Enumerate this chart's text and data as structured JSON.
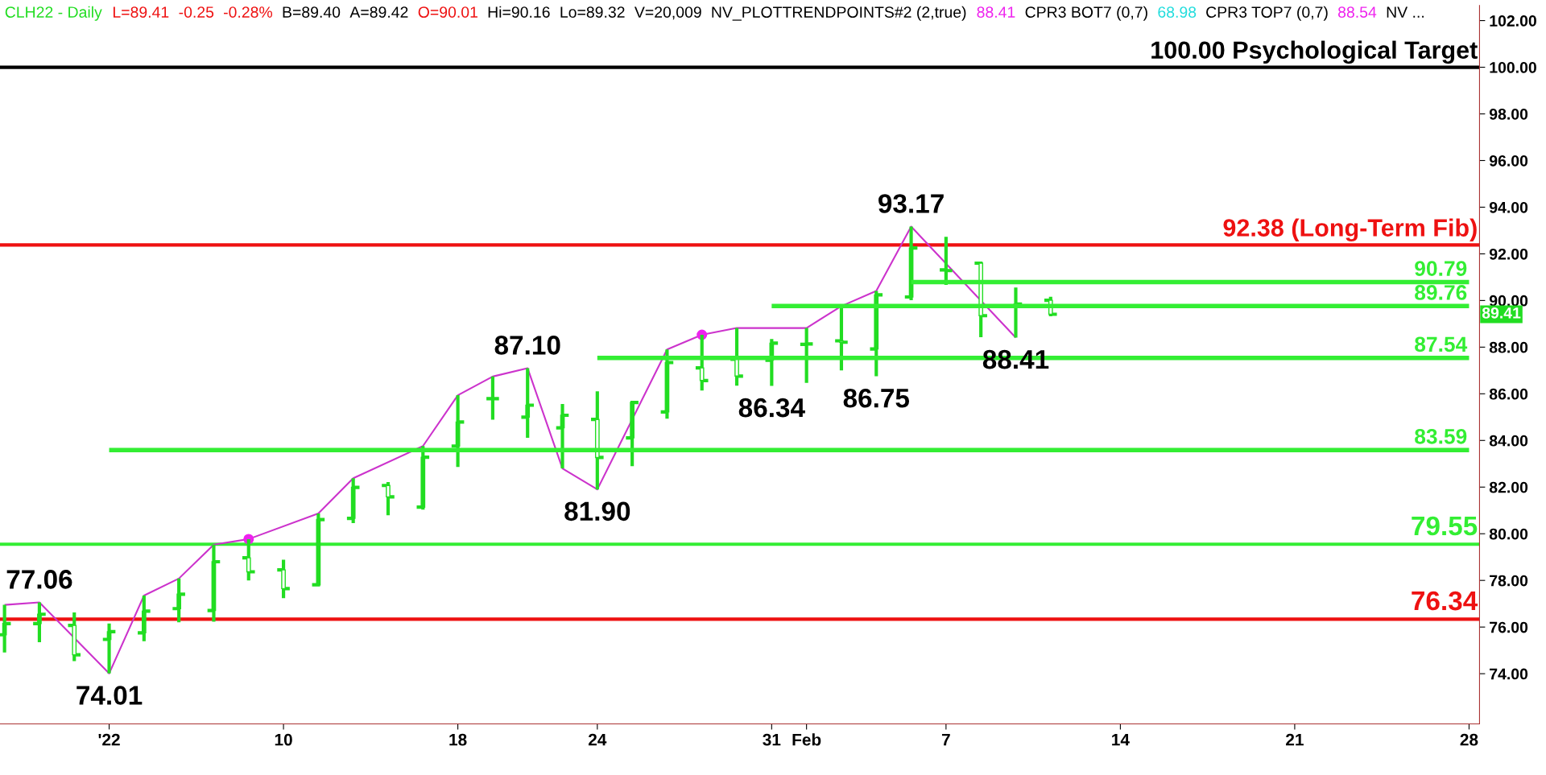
{
  "chart_data": {
    "type": "candlestick",
    "title": "CLH22 - Daily",
    "categories": [
      null,
      null,
      null,
      "'22",
      null,
      null,
      null,
      null,
      "10",
      null,
      null,
      null,
      null,
      "18",
      null,
      null,
      null,
      "24",
      null,
      null,
      null,
      null,
      "31",
      "Feb",
      null,
      null,
      null,
      "7",
      null,
      null,
      null,
      null,
      "14",
      null,
      null,
      null,
      null,
      "21",
      null,
      null,
      null,
      null,
      "28"
    ],
    "ohlc": [
      [
        75.67,
        76.95,
        74.91,
        76.15
      ],
      [
        76.15,
        77.06,
        75.35,
        76.55
      ],
      [
        76.07,
        76.63,
        74.54,
        74.81
      ],
      [
        75.47,
        76.15,
        74.01,
        75.8
      ],
      [
        75.75,
        77.35,
        75.39,
        76.68
      ],
      [
        76.79,
        78.08,
        76.2,
        77.41
      ],
      [
        76.71,
        79.53,
        76.23,
        78.8
      ],
      [
        78.97,
        79.77,
        78.0,
        78.37
      ],
      [
        78.45,
        78.89,
        77.24,
        77.65
      ],
      [
        77.81,
        80.87,
        77.81,
        80.61
      ],
      [
        80.66,
        82.38,
        80.46,
        81.99
      ],
      [
        82.07,
        82.22,
        80.79,
        81.58
      ],
      [
        81.14,
        83.76,
        81.03,
        83.28
      ],
      [
        83.76,
        85.94,
        82.86,
        84.79
      ],
      [
        85.79,
        86.74,
        84.89,
        85.79
      ],
      [
        85.0,
        87.1,
        84.11,
        85.51
      ],
      [
        84.54,
        85.56,
        82.8,
        85.08
      ],
      [
        84.9,
        86.11,
        81.9,
        83.27
      ],
      [
        84.11,
        85.7,
        82.9,
        85.63
      ],
      [
        85.22,
        87.9,
        84.93,
        87.34
      ],
      [
        87.11,
        88.53,
        86.14,
        86.57
      ],
      [
        87.48,
        88.82,
        86.35,
        86.76
      ],
      [
        87.44,
        88.35,
        86.34,
        88.17
      ],
      [
        88.12,
        88.82,
        86.47,
        88.14
      ],
      [
        88.27,
        89.76,
        87.0,
        88.21
      ],
      [
        87.92,
        90.41,
        86.75,
        90.24
      ],
      [
        90.15,
        93.17,
        90.01,
        92.25
      ],
      [
        91.31,
        92.73,
        90.67,
        91.28
      ],
      [
        91.6,
        91.67,
        88.43,
        89.35
      ],
      [
        89.75,
        90.56,
        88.41,
        89.85
      ],
      [
        90.01,
        90.16,
        89.32,
        89.41
      ],
      null,
      null,
      null,
      null,
      null,
      null,
      null,
      null,
      null,
      null,
      null,
      null
    ],
    "color": "#22dd22",
    "series": [
      {
        "type": "line",
        "color": "#cc33cc",
        "values": [
          76.95,
          77.06,
          null,
          74.01,
          77.35,
          78.08,
          79.53,
          79.77,
          null,
          80.87,
          82.38,
          null,
          83.76,
          85.94,
          86.74,
          87.1,
          82.8,
          81.9,
          null,
          87.9,
          88.53,
          88.82,
          null,
          88.82,
          89.76,
          90.41,
          93.17,
          null,
          null,
          88.41,
          null,
          null,
          null,
          null,
          null,
          null,
          null,
          null,
          null,
          null,
          null,
          null,
          null
        ]
      },
      {
        "type": "scatter",
        "color": "#ee22ee",
        "marker": "circle",
        "values": [
          null,
          null,
          null,
          null,
          null,
          null,
          null,
          79.77,
          null,
          null,
          null,
          null,
          null,
          null,
          null,
          null,
          null,
          null,
          null,
          null,
          88.53,
          null,
          null,
          null,
          null,
          null,
          null,
          null,
          null,
          null,
          null,
          null,
          null,
          null,
          null,
          null,
          null,
          null,
          null,
          null,
          null,
          null,
          null
        ]
      },
      {
        "type": "line",
        "color": "#33ee33",
        "values": [
          null,
          null,
          null,
          null,
          null,
          null,
          null,
          null,
          null,
          null,
          null,
          null,
          null,
          null,
          null,
          null,
          null,
          null,
          null,
          null,
          null,
          null,
          null,
          null,
          null,
          null,
          90.79,
          90.79,
          90.79,
          90.79,
          90.79,
          90.79,
          90.79,
          90.79,
          90.79,
          90.79,
          90.79,
          90.79,
          90.79,
          90.79,
          90.79,
          90.79,
          90.79
        ],
        "value_labels": [
          null,
          null,
          null,
          null,
          null,
          null,
          null,
          null,
          null,
          null,
          null,
          null,
          null,
          null,
          null,
          null,
          null,
          null,
          null,
          null,
          null,
          null,
          null,
          null,
          null,
          null,
          null,
          null,
          null,
          null,
          null,
          null,
          null,
          null,
          null,
          null,
          null,
          null,
          null,
          null,
          null,
          null,
          "90.79"
        ]
      },
      {
        "type": "line",
        "color": "#33ee33",
        "values": [
          null,
          null,
          null,
          null,
          null,
          null,
          null,
          null,
          null,
          null,
          null,
          null,
          null,
          null,
          null,
          null,
          null,
          null,
          null,
          null,
          null,
          null,
          89.76,
          89.76,
          89.76,
          89.76,
          89.76,
          89.76,
          89.76,
          89.76,
          89.76,
          89.76,
          89.76,
          89.76,
          89.76,
          89.76,
          89.76,
          89.76,
          89.76,
          89.76,
          89.76,
          89.76,
          89.76
        ],
        "value_labels": [
          null,
          null,
          null,
          null,
          null,
          null,
          null,
          null,
          null,
          null,
          null,
          null,
          null,
          null,
          null,
          null,
          null,
          null,
          null,
          null,
          null,
          null,
          null,
          null,
          null,
          null,
          null,
          null,
          null,
          null,
          null,
          null,
          null,
          null,
          null,
          null,
          null,
          null,
          null,
          null,
          null,
          null,
          "89.76"
        ]
      },
      {
        "type": "line",
        "color": "#33ee33",
        "values": [
          null,
          null,
          null,
          null,
          null,
          null,
          null,
          null,
          null,
          null,
          null,
          null,
          null,
          null,
          null,
          null,
          null,
          87.54,
          87.54,
          87.54,
          87.54,
          87.54,
          87.54,
          87.54,
          87.54,
          87.54,
          87.54,
          87.54,
          87.54,
          87.54,
          87.54,
          87.54,
          87.54,
          87.54,
          87.54,
          87.54,
          87.54,
          87.54,
          87.54,
          87.54,
          87.54,
          87.54,
          87.54
        ],
        "value_labels": [
          null,
          null,
          null,
          null,
          null,
          null,
          null,
          null,
          null,
          null,
          null,
          null,
          null,
          null,
          null,
          null,
          null,
          null,
          null,
          null,
          null,
          null,
          null,
          null,
          null,
          null,
          null,
          null,
          null,
          null,
          null,
          null,
          null,
          null,
          null,
          null,
          null,
          null,
          null,
          null,
          null,
          null,
          "87.54"
        ]
      },
      {
        "type": "line",
        "color": "#33ee33",
        "values": [
          null,
          null,
          null,
          83.59,
          83.59,
          83.59,
          83.59,
          83.59,
          83.59,
          83.59,
          83.59,
          83.59,
          83.59,
          83.59,
          83.59,
          83.59,
          83.59,
          83.59,
          83.59,
          83.59,
          83.59,
          83.59,
          83.59,
          83.59,
          83.59,
          83.59,
          83.59,
          83.59,
          83.59,
          83.59,
          83.59,
          83.59,
          83.59,
          83.59,
          83.59,
          83.59,
          83.59,
          83.59,
          83.59,
          83.59,
          83.59,
          83.59,
          83.59
        ],
        "value_labels": [
          null,
          null,
          null,
          null,
          null,
          null,
          null,
          null,
          null,
          null,
          null,
          null,
          null,
          null,
          null,
          null,
          null,
          null,
          null,
          null,
          null,
          null,
          null,
          null,
          null,
          null,
          null,
          null,
          null,
          null,
          null,
          null,
          null,
          null,
          null,
          null,
          null,
          null,
          null,
          null,
          null,
          null,
          "83.59"
        ]
      }
    ],
    "ref_lines": [
      {
        "axis": "y",
        "value": 100,
        "label": "100.00 Psychological Target",
        "color": "#000000"
      },
      {
        "axis": "y",
        "value": 92.38,
        "label": "92.38 (Long-Term Fib)",
        "color": "#ee1111"
      },
      {
        "axis": "y",
        "value": 79.55,
        "label": "79.55",
        "color": "#33ee33"
      },
      {
        "axis": "y",
        "value": 76.34,
        "label": "76.34",
        "color": "#ee1111"
      }
    ],
    "annotations": [
      "L=89.41",
      "-0.25",
      "-0.28%",
      "B=89.40",
      "A=89.42",
      "O=90.01",
      "Hi=90.16",
      "Lo=89.32",
      "V=20,009",
      "NV_PLOTTRENDPOINTS#2 (2,true)",
      "88.41",
      "CPR3 BOT7 (0,7)",
      "68.98",
      "CPR3 TOP7 (0,7)",
      "88.54",
      "NV ...",
      {
        "text": "77.06",
        "y": 77.06
      },
      {
        "text": "74.01",
        "y": 74.01
      },
      {
        "text": "87.10",
        "y": 87.1
      },
      {
        "text": "81.90",
        "y": 81.9
      },
      {
        "text": "86.34",
        "y": 86.34
      },
      {
        "text": "86.75",
        "y": 86.75
      },
      {
        "text": "93.17",
        "y": 93.17
      },
      {
        "text": "88.41",
        "y": 88.41
      },
      {
        "text": "89.41"
      }
    ],
    "ylim": [
      71.85,
      102.65
    ],
    "yticks": [
      {
        "value": 74,
        "label": "74.00"
      },
      {
        "value": 76,
        "label": "76.00"
      },
      {
        "value": 78,
        "label": "78.00"
      },
      {
        "value": 80,
        "label": "80.00"
      },
      {
        "value": 82,
        "label": "82.00"
      },
      {
        "value": 84,
        "label": "84.00"
      },
      {
        "value": 86,
        "label": "86.00"
      },
      {
        "value": 88,
        "label": "88.00"
      },
      {
        "value": 90,
        "label": "90.00"
      },
      {
        "value": 92,
        "label": "92.00"
      },
      {
        "value": 94,
        "label": "94.00"
      },
      {
        "value": 96,
        "label": "96.00"
      },
      {
        "value": 98,
        "label": "98.00"
      },
      {
        "value": 100,
        "label": "100.00"
      },
      {
        "value": 102,
        "label": "102.00"
      }
    ],
    "grid": false
  }
}
